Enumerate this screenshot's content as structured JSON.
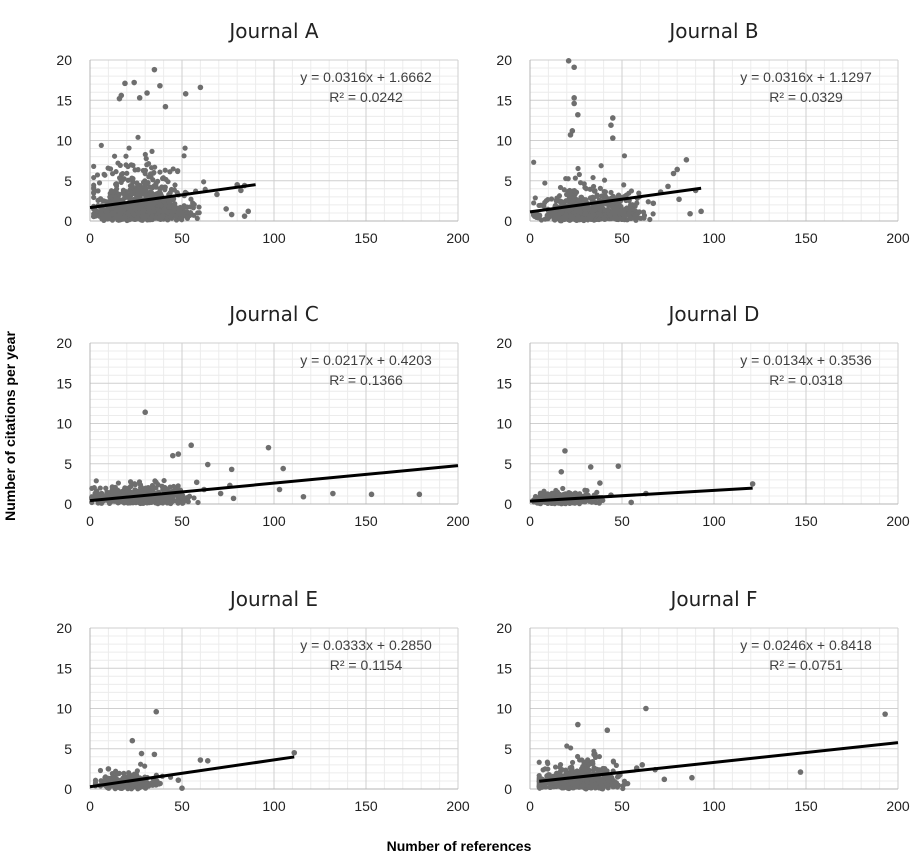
{
  "figure": {
    "ylabel": "Number of citations per year",
    "xlabel": "Number of references"
  },
  "chart_data": [
    {
      "type": "scatter",
      "title": "Journal A",
      "xlim": [
        0,
        200
      ],
      "ylim": [
        0,
        20
      ],
      "xticks": [
        0,
        50,
        100,
        150,
        200
      ],
      "yticks": [
        0,
        5,
        10,
        15,
        20
      ],
      "grid": true,
      "equation": "y = 0.0316x + 1.6662",
      "r2": "R² = 0.0242",
      "trendline": {
        "slope": 0.0316,
        "intercept": 1.6662,
        "x_range": [
          0,
          90
        ]
      },
      "cluster": {
        "n": 900,
        "x_mu": 28,
        "x_sd": 12,
        "x_min": 2,
        "x_max": 88,
        "y_scale": 3.0,
        "y_max": 14
      },
      "points": [
        [
          35,
          18.8
        ],
        [
          24,
          17.2
        ],
        [
          19,
          17.1
        ],
        [
          16,
          15.2
        ],
        [
          17,
          15.6
        ],
        [
          31,
          15.9
        ],
        [
          38,
          16.8
        ],
        [
          52,
          15.8
        ],
        [
          60,
          16.6
        ],
        [
          27,
          15.3
        ],
        [
          41,
          14.2
        ],
        [
          9,
          1.2
        ],
        [
          80,
          4.5
        ],
        [
          82,
          3.8
        ],
        [
          84,
          4.4
        ],
        [
          86,
          1.2
        ],
        [
          74,
          1.5
        ],
        [
          77,
          0.8
        ],
        [
          69,
          3.3
        ],
        [
          84,
          0.6
        ]
      ]
    },
    {
      "type": "scatter",
      "title": "Journal B",
      "xlim": [
        0,
        200
      ],
      "ylim": [
        0,
        20
      ],
      "xticks": [
        0,
        50,
        100,
        150,
        200
      ],
      "yticks": [
        0,
        5,
        10,
        15,
        20
      ],
      "grid": true,
      "equation": "y = 0.0316x + 1.1297",
      "r2": "R² = 0.0329",
      "trendline": {
        "slope": 0.0316,
        "intercept": 1.1297,
        "x_range": [
          0,
          93
        ]
      },
      "cluster": {
        "n": 700,
        "x_mu": 32,
        "x_sd": 13,
        "x_min": 2,
        "x_max": 90,
        "y_scale": 2.0,
        "y_max": 10
      },
      "points": [
        [
          21,
          19.9
        ],
        [
          24,
          19.1
        ],
        [
          24,
          15.3
        ],
        [
          24,
          14.6
        ],
        [
          26,
          13.2
        ],
        [
          45,
          12.8
        ],
        [
          44,
          11.9
        ],
        [
          23,
          11.2
        ],
        [
          22,
          10.7
        ],
        [
          45,
          10.3
        ],
        [
          85,
          7.6
        ],
        [
          80,
          6.4
        ],
        [
          78,
          5.9
        ],
        [
          75,
          4.3
        ],
        [
          93,
          1.2
        ],
        [
          87,
          0.9
        ],
        [
          81,
          2.7
        ],
        [
          71,
          3.6
        ],
        [
          90,
          3.8
        ],
        [
          67,
          2.2
        ]
      ]
    },
    {
      "type": "scatter",
      "title": "Journal C",
      "xlim": [
        0,
        200
      ],
      "ylim": [
        0,
        20
      ],
      "xticks": [
        0,
        50,
        100,
        150,
        200
      ],
      "yticks": [
        0,
        5,
        10,
        15,
        20
      ],
      "grid": true,
      "equation": "y = 0.0217x + 0.4203",
      "r2": "R² = 0.1366",
      "trendline": {
        "slope": 0.0217,
        "intercept": 0.4203,
        "x_range": [
          0,
          200
        ]
      },
      "cluster": {
        "n": 650,
        "x_mu": 27,
        "x_sd": 11,
        "x_min": 1,
        "x_max": 70,
        "y_scale": 0.9,
        "y_max": 5
      },
      "points": [
        [
          30,
          11.4
        ],
        [
          55,
          7.3
        ],
        [
          97,
          7.0
        ],
        [
          48,
          6.2
        ],
        [
          45,
          6.0
        ],
        [
          64,
          4.9
        ],
        [
          105,
          4.4
        ],
        [
          77,
          4.3
        ],
        [
          76,
          2.3
        ],
        [
          103,
          1.8
        ],
        [
          116,
          0.9
        ],
        [
          132,
          1.3
        ],
        [
          153,
          1.2
        ],
        [
          179,
          1.2
        ],
        [
          71,
          1.3
        ],
        [
          78,
          0.7
        ],
        [
          58,
          2.7
        ],
        [
          62,
          1.8
        ]
      ]
    },
    {
      "type": "scatter",
      "title": "Journal D",
      "xlim": [
        0,
        200
      ],
      "ylim": [
        0,
        20
      ],
      "xticks": [
        0,
        50,
        100,
        150,
        200
      ],
      "yticks": [
        0,
        5,
        10,
        15,
        20
      ],
      "grid": true,
      "equation": "y = 0.0134x + 0.3536",
      "r2": "R² = 0.0318",
      "trendline": {
        "slope": 0.0134,
        "intercept": 0.3536,
        "x_range": [
          0,
          121
        ]
      },
      "cluster": {
        "n": 400,
        "x_mu": 20,
        "x_sd": 8,
        "x_min": 2,
        "x_max": 45,
        "y_scale": 0.6,
        "y_max": 3
      },
      "points": [
        [
          19,
          6.6
        ],
        [
          48,
          4.7
        ],
        [
          33,
          4.6
        ],
        [
          17,
          4.0
        ],
        [
          121,
          2.5
        ],
        [
          55,
          0.2
        ],
        [
          44,
          1.1
        ],
        [
          63,
          1.3
        ],
        [
          38,
          2.6
        ]
      ]
    },
    {
      "type": "scatter",
      "title": "Journal E",
      "xlim": [
        0,
        200
      ],
      "ylim": [
        0,
        20
      ],
      "xticks": [
        0,
        50,
        100,
        150,
        200
      ],
      "yticks": [
        0,
        5,
        10,
        15,
        20
      ],
      "grid": true,
      "equation": "y = 0.0333x + 0.2850",
      "r2": "R² = 0.1154",
      "trendline": {
        "slope": 0.0333,
        "intercept": 0.285,
        "x_range": [
          0,
          111
        ]
      },
      "cluster": {
        "n": 300,
        "x_mu": 21,
        "x_sd": 8,
        "x_min": 3,
        "x_max": 45,
        "y_scale": 0.9,
        "y_max": 4.5
      },
      "points": [
        [
          36,
          9.6
        ],
        [
          23,
          6.0
        ],
        [
          35,
          4.3
        ],
        [
          60,
          3.6
        ],
        [
          64,
          3.5
        ],
        [
          111,
          4.5
        ],
        [
          48,
          1.1
        ],
        [
          50,
          0.1
        ],
        [
          28,
          4.4
        ],
        [
          10,
          2.5
        ]
      ]
    },
    {
      "type": "scatter",
      "title": "Journal F",
      "xlim": [
        0,
        200
      ],
      "ylim": [
        0,
        20
      ],
      "xticks": [
        0,
        50,
        100,
        150,
        200
      ],
      "yticks": [
        0,
        5,
        10,
        15,
        20
      ],
      "grid": true,
      "equation": "y = 0.0246x + 0.8418",
      "r2": "R² = 0.0751",
      "trendline": {
        "slope": 0.0246,
        "intercept": 0.8418,
        "x_range": [
          5,
          200
        ]
      },
      "cluster": {
        "n": 650,
        "x_mu": 27,
        "x_sd": 10,
        "x_min": 5,
        "x_max": 55,
        "y_scale": 1.5,
        "y_max": 7
      },
      "points": [
        [
          63,
          10.0
        ],
        [
          193,
          9.3
        ],
        [
          147,
          2.1
        ],
        [
          88,
          1.4
        ],
        [
          73,
          1.2
        ],
        [
          68,
          2.4
        ],
        [
          58,
          2.6
        ],
        [
          61,
          3.0
        ],
        [
          26,
          8.0
        ],
        [
          42,
          7.3
        ]
      ]
    }
  ]
}
